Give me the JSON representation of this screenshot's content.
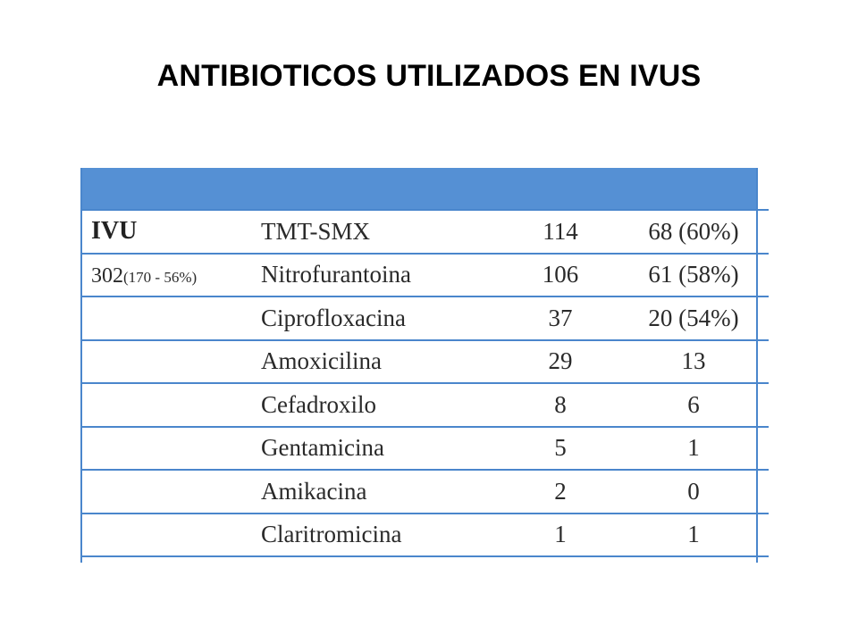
{
  "title": "ANTIBIOTICOS UTILIZADOS EN IVUS",
  "table": {
    "group_label": "IVU",
    "group_count_main": "302",
    "group_count_detail": "(170 - 56%)",
    "rows": [
      {
        "drug": "TMT-SMX",
        "n": "114",
        "res": "68 (60%)"
      },
      {
        "drug": "Nitrofurantoina",
        "n": "106",
        "res": "61 (58%)"
      },
      {
        "drug": "Ciprofloxacina",
        "n": "37",
        "res": "20 (54%)"
      },
      {
        "drug": "Amoxicilina",
        "n": "29",
        "res": "13"
      },
      {
        "drug": "Cefadroxilo",
        "n": "8",
        "res": "6"
      },
      {
        "drug": "Gentamicina",
        "n": "5",
        "res": "1"
      },
      {
        "drug": "Amikacina",
        "n": "2",
        "res": "0"
      },
      {
        "drug": "Claritromicina",
        "n": "1",
        "res": "1"
      }
    ]
  },
  "colors": {
    "header_fill": "#5590d4",
    "grid_line": "#4a86cc"
  }
}
